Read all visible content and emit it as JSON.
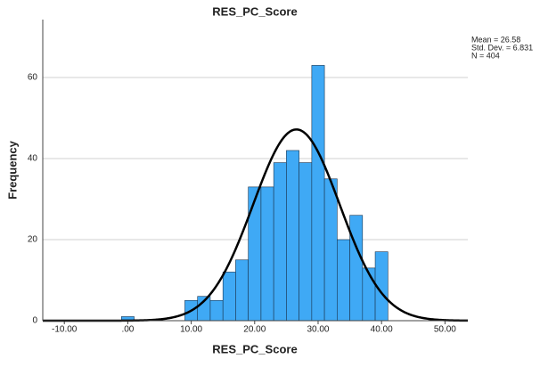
{
  "chart_data": {
    "type": "histogram",
    "title": "RES_PC_Score",
    "x_label": "RES_PC_Score",
    "y_label": "Frequency",
    "bins": [
      -1,
      1,
      3,
      5,
      7,
      9,
      11,
      13,
      15,
      17,
      19,
      21,
      23,
      25,
      27,
      29,
      31,
      33,
      35,
      37,
      39,
      41
    ],
    "counts": [
      1,
      0,
      0,
      0,
      0,
      5,
      6,
      5,
      12,
      15,
      33,
      33,
      39,
      42,
      39,
      63,
      35,
      20,
      26,
      13,
      17
    ],
    "color": "#3fa9f5",
    "edge_color": "#1a3550",
    "curve_color": "#000000",
    "stats": [
      {
        "label": "Mean = 26.58",
        "value": 26.58
      },
      {
        "label": "Std. Dev. = 6.831",
        "value": 6.831
      },
      {
        "label": "N = 404",
        "value": 404
      }
    ],
    "xlim": [
      -13.4,
      53.6
    ],
    "ylim": [
      0,
      74.3
    ],
    "xticks": [
      {
        "value": -10,
        "label": "-10.00"
      },
      {
        "value": 0,
        "label": ".00"
      },
      {
        "value": 10,
        "label": "10.00"
      },
      {
        "value": 20,
        "label": "20.00"
      },
      {
        "value": 30,
        "label": "30.00"
      },
      {
        "value": 40,
        "label": "40.00"
      },
      {
        "value": 50,
        "label": "50.00"
      }
    ],
    "yticks": [
      0,
      20,
      40,
      60
    ],
    "grid": true
  }
}
